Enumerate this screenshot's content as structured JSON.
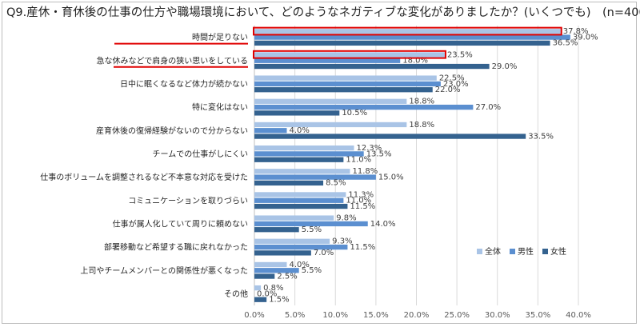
{
  "chart_data": {
    "type": "bar",
    "orientation": "horizontal",
    "title": "Q9.産休・育休後の仕事の仕方や職場環境において、どのようなネガティブな変化がありましたか？(いくつでも)　(n=400)",
    "categories": [
      "時間が足りない",
      "急な休みなどで肩身の狭い思いをしている",
      "日中に眠くなるなど体力が続かない",
      "特に変化はない",
      "産育休後の復帰経験がないので分からない",
      "チームでの仕事がしにくい",
      "仕事のボリュームを調整されるなど不本意な対応を受けた",
      "コミュニケーションを取りづらい",
      "仕事が属人化していて周りに頼めない",
      "部署移動など希望する職に戻れなかった",
      "上司やチームメンバーとの関係性が悪くなった",
      "その他"
    ],
    "series": [
      {
        "name": "全体",
        "color": "#a9c4e6",
        "values": [
          37.8,
          23.5,
          22.5,
          18.8,
          18.8,
          12.3,
          11.8,
          11.3,
          9.8,
          9.3,
          4.0,
          0.8
        ]
      },
      {
        "name": "男性",
        "color": "#5b8fd0",
        "values": [
          39.0,
          18.0,
          23.0,
          27.0,
          4.0,
          13.5,
          15.0,
          11.0,
          14.0,
          11.5,
          5.5,
          0.0
        ]
      },
      {
        "name": "女性",
        "color": "#34628f",
        "values": [
          36.5,
          29.0,
          22.0,
          10.5,
          33.5,
          11.0,
          8.5,
          11.5,
          5.5,
          7.0,
          2.5,
          1.5
        ]
      }
    ],
    "value_labels": [
      [
        "37.8%",
        "39.0%",
        "36.5%"
      ],
      [
        "23.5%",
        "18.0%",
        "29.0%"
      ],
      [
        "22.5%",
        "23.0%",
        "22.0%"
      ],
      [
        "18.8%",
        "27.0%",
        "10.5%"
      ],
      [
        "18.8%",
        "4.0%",
        "33.5%"
      ],
      [
        "12.3%",
        "13.5%",
        "11.0%"
      ],
      [
        "11.8%",
        "15.0%",
        "8.5%"
      ],
      [
        "11.3%",
        "11.0%",
        "11.5%"
      ],
      [
        "9.8%",
        "14.0%",
        "5.5%"
      ],
      [
        "9.3%",
        "11.5%",
        "7.0%"
      ],
      [
        "4.0%",
        "5.5%",
        "2.5%"
      ],
      [
        "0.8%",
        "0.0%",
        "1.5%"
      ]
    ],
    "xlim": [
      0,
      40
    ],
    "xticks": [
      "0.0%",
      "5.0%",
      "10.0%",
      "15.0%",
      "20.0%",
      "25.0%",
      "30.0%",
      "35.0%",
      "40.0%"
    ],
    "grid": true,
    "legend": "bottom-right",
    "highlighted_categories": [
      0,
      1
    ],
    "highlight_color": "#e00000"
  }
}
